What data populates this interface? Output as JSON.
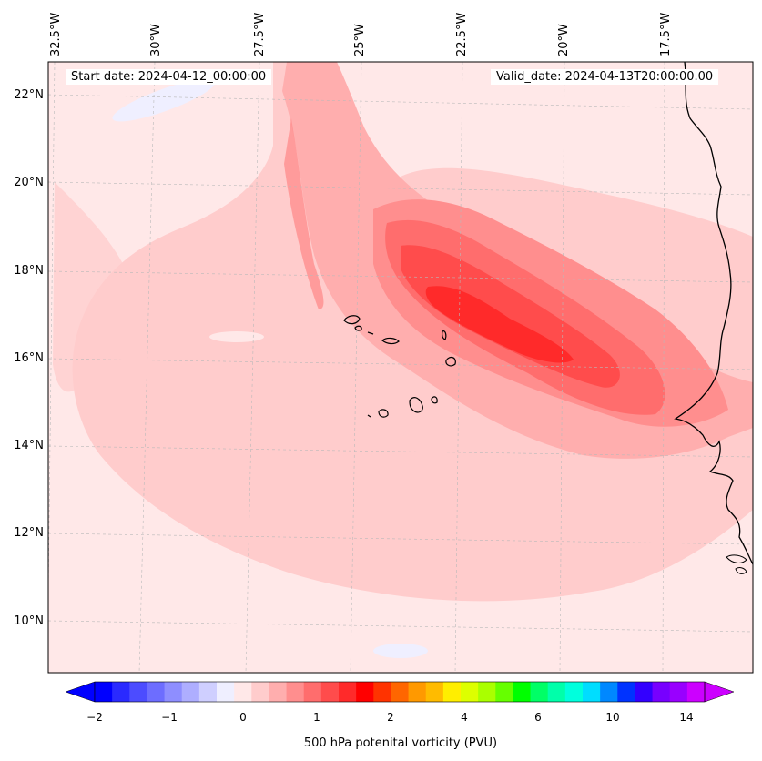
{
  "header": {
    "start_date": "Start date: 2024-04-12_00:00:00",
    "valid_date": "Valid_date: 2024-04-13T20:00:00.00"
  },
  "axes": {
    "lon_labels": [
      "32.5°W",
      "30°W",
      "27.5°W",
      "25°W",
      "22.5°W",
      "20°W",
      "17.5°W"
    ],
    "lat_labels": [
      "22°N",
      "20°N",
      "18°N",
      "16°N",
      "14°N",
      "12°N",
      "10°N"
    ]
  },
  "colorbar": {
    "label": "500 hPa potenital vorticity (PVU)",
    "ticks": [
      "−2",
      "−1",
      "0",
      "1",
      "2",
      "4",
      "6",
      "10",
      "14"
    ],
    "colors": [
      "#0000ff",
      "#2a2aff",
      "#4c4cff",
      "#6d6dff",
      "#8e8eff",
      "#aeaeff",
      "#cfcfff",
      "#efefff",
      "#ffe8e8",
      "#ffcccc",
      "#ffaeae",
      "#ff8e8e",
      "#ff6d6d",
      "#ff4c4c",
      "#ff2a2a",
      "#ff0000",
      "#ff3300",
      "#ff6600",
      "#ff9900",
      "#ffbb00",
      "#ffee00",
      "#ddff00",
      "#aaff00",
      "#66ff00",
      "#00ff00",
      "#00ff66",
      "#00ffaa",
      "#00ffdd",
      "#00ddff",
      "#0088ff",
      "#0033ff",
      "#3300ff",
      "#7700ff",
      "#9900ff",
      "#cc00ff"
    ]
  },
  "map": {
    "title_field": "500 hPa potential vorticity",
    "colors": {
      "background": "#ffe8e8",
      "level1": "#ffcccc",
      "level2": "#ffaeae",
      "level3": "#ff8e8e",
      "level4": "#ff6d6d",
      "level5": "#ff4c4c",
      "level6": "#ff2a2a",
      "negative": "#efefff"
    }
  }
}
